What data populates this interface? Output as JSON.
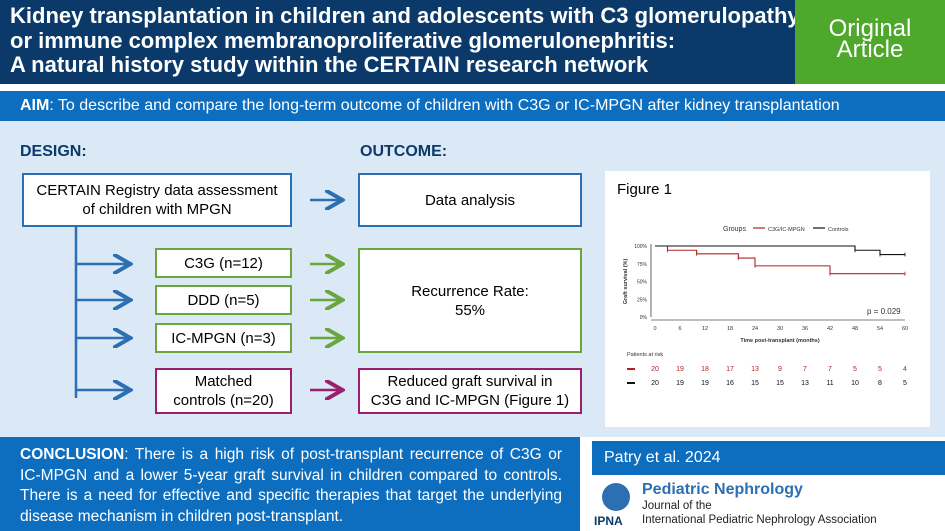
{
  "header": {
    "title_lines": [
      "Kidney transplantation in children and adolescents with C3 glomerulopathy",
      "or immune complex membranoproliferative glomerulonephritis:",
      "A natural history study within the CERTAIN research network"
    ],
    "badge_lines": [
      "Original",
      "Article"
    ]
  },
  "aim": {
    "label": "AIM",
    "text": ": To describe and compare the long-term outcome of children with C3G or IC-MPGN after kidney transplantation"
  },
  "design": {
    "label": "DESIGN:",
    "registry": [
      "CERTAIN Registry data assessment",
      "of children with MPGN"
    ],
    "groups": [
      "C3G (n=12)",
      "DDD (n=5)",
      "IC-MPGN (n=3)"
    ],
    "controls": [
      "Matched",
      "controls (n=20)"
    ]
  },
  "outcome": {
    "label": "OUTCOME:",
    "analysis": "Data analysis",
    "recurrence": [
      "Recurrence Rate:",
      "55%"
    ],
    "graft": [
      "Reduced graft survival in",
      "C3G and IC-MPGN (Figure 1)"
    ]
  },
  "figure": {
    "title": "Figure 1",
    "colors": {
      "series1": "#b22222",
      "series2": "#111111"
    }
  },
  "chart_data": {
    "type": "line",
    "title": "",
    "legend_title": "Groups",
    "legend_position": "top",
    "xlabel": "Time post-transplant (months)",
    "ylabel": "Graft survival (%)",
    "x_ticks": [
      "0",
      "6",
      "12",
      "18",
      "24",
      "30",
      "36",
      "42",
      "48",
      "54",
      "60"
    ],
    "y_ticks": [
      "0%",
      "25%",
      "50%",
      "75%",
      "100%"
    ],
    "xlim": [
      0,
      60
    ],
    "ylim": [
      0,
      100
    ],
    "annotation": "p = 0.029",
    "series": [
      {
        "name": "C3G/IC-MPGN",
        "color": "#b22222",
        "steps": [
          [
            0,
            100
          ],
          [
            3,
            94
          ],
          [
            10,
            89
          ],
          [
            20,
            83
          ],
          [
            24,
            72
          ],
          [
            42,
            61
          ],
          [
            60,
            61
          ]
        ]
      },
      {
        "name": "Controls",
        "color": "#111111",
        "steps": [
          [
            0,
            100
          ],
          [
            48,
            94
          ],
          [
            54,
            88
          ],
          [
            60,
            88
          ]
        ]
      }
    ],
    "risk_table": {
      "title": "Patients at risk",
      "rows": [
        {
          "color": "#b22222",
          "values": [
            "20",
            "19",
            "18",
            "17",
            "13",
            "9",
            "7",
            "7",
            "5",
            "5",
            "4"
          ]
        },
        {
          "color": "#111111",
          "values": [
            "20",
            "19",
            "19",
            "16",
            "15",
            "15",
            "13",
            "11",
            "10",
            "8",
            "5"
          ]
        }
      ]
    }
  },
  "conclusion": {
    "label": "CONCLUSION",
    "text": ": There is a high risk of post-transplant recurrence of C3G or IC-MPGN and a lower 5-year graft survival in children compared to controls. There is a need for effective and specific therapies that target the underlying disease mechanism in children post-transplant."
  },
  "citation": {
    "author": "Patry et al. 2024",
    "journal": "Pediatric Nephrology",
    "journal_sub1": "Journal of the",
    "journal_sub2": "International Pediatric Nephrology Association",
    "ipna": "IPNA"
  }
}
